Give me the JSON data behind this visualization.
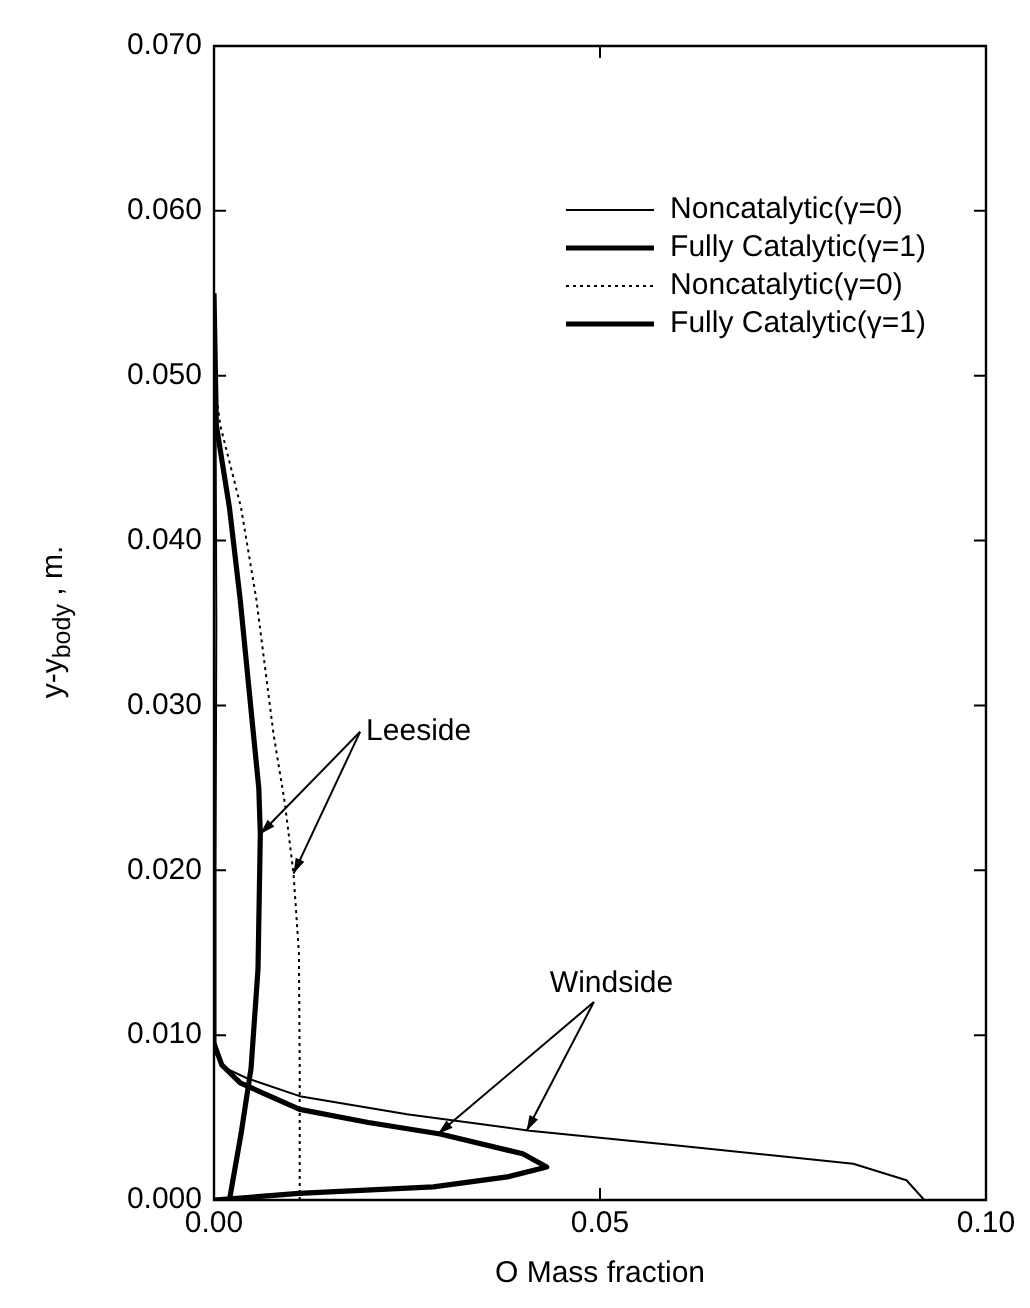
{
  "chart_data": {
    "type": "line",
    "xlabel": "O Mass fraction",
    "ylabel": "y-y$_{body}$ , m.",
    "xlim": [
      0,
      0.1
    ],
    "xticks": [
      {
        "value": 0,
        "label": "0.00"
      },
      {
        "value": 0.05,
        "label": "0.05"
      },
      {
        "value": 0.1,
        "label": "0.10"
      }
    ],
    "ylim": [
      0,
      0.07
    ],
    "yticks": [
      {
        "value": 0,
        "label": "0.000"
      },
      {
        "value": 0.01,
        "label": "0.010"
      },
      {
        "value": 0.02,
        "label": "0.020"
      },
      {
        "value": 0.03,
        "label": "0.030"
      },
      {
        "value": 0.04,
        "label": "0.040"
      },
      {
        "value": 0.05,
        "label": "0.050"
      },
      {
        "value": 0.06,
        "label": "0.060"
      },
      {
        "value": 0.07,
        "label": "0.070"
      }
    ],
    "grid": false,
    "legend": "top right",
    "marker": "none",
    "series": [
      {
        "name": "Noncatalytic(γ=0)",
        "color": "#000000",
        "line_style": "solid",
        "x": [
          0.092,
          0.0897,
          0.0828,
          0.06,
          0.0409,
          0.025,
          0.0111,
          0.0042,
          0.0015,
          0.0003,
          0.0001,
          0.0002,
          0.0003,
          0.0002,
          0
        ],
        "values": [
          0,
          0.0012,
          0.0022,
          0.0033,
          0.0042,
          0.0052,
          0.0063,
          0.0074,
          0.008,
          0.0088,
          0.0095,
          0.02,
          0.035,
          0.048,
          0.055
        ]
      },
      {
        "name": "Fully Catalytic(γ=1)",
        "color": "#000000",
        "line_style": "solid",
        "x": [
          0,
          0.011,
          0.0284,
          0.038,
          0.0431,
          0.04,
          0.0293,
          0.02,
          0.0111,
          0.0034,
          0.001,
          0
        ],
        "values": [
          0,
          0.0004,
          0.0008,
          0.0014,
          0.002,
          0.0028,
          0.004,
          0.0047,
          0.0055,
          0.0071,
          0.0082,
          0.0095
        ]
      },
      {
        "name": "Noncatalytic(γ=0)",
        "color": "#000000",
        "line_style": "dotted",
        "x": [
          0.0111,
          0.0111,
          0.011,
          0.0103,
          0.0092,
          0.0077,
          0.0055,
          0.0035,
          0.0008,
          0
        ],
        "values": [
          0,
          0.008,
          0.015,
          0.0198,
          0.024,
          0.0283,
          0.0364,
          0.042,
          0.047,
          0.05
        ]
      },
      {
        "name": "Fully Catalytic(γ=1)",
        "color": "#000000",
        "line_style": "solid",
        "x": [
          0.002,
          0.0035,
          0.0048,
          0.0057,
          0.006,
          0.0058,
          0.0051,
          0.0034,
          0.002,
          0.0003,
          0
        ],
        "values": [
          0,
          0.004,
          0.008,
          0.014,
          0.0222,
          0.025,
          0.0283,
          0.0364,
          0.042,
          0.047,
          0.055
        ]
      }
    ],
    "annotations": [
      {
        "text": "Leeside",
        "x": 0.006,
        "y": 0.0222
      },
      {
        "text": "Windside",
        "x": 0.029,
        "y": 0.004
      }
    ]
  }
}
